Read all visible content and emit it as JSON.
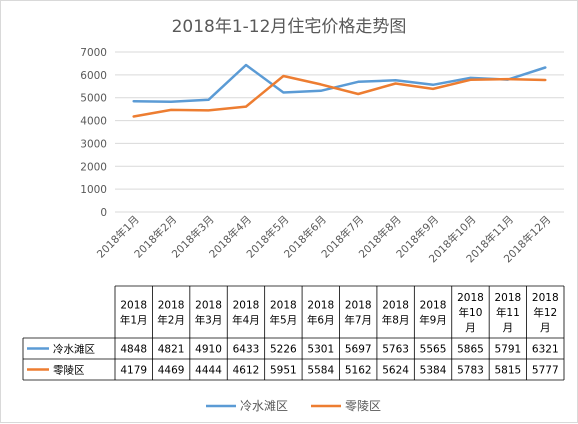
{
  "chart_data": {
    "type": "line",
    "title": "2018年1-12月住宅价格走势图",
    "categories": [
      "2018年1月",
      "2018年2月",
      "2018年3月",
      "2018年4月",
      "2018年5月",
      "2018年6月",
      "2018年7月",
      "2018年8月",
      "2018年9月",
      "2018年10月",
      "2018年11月",
      "2018年12月"
    ],
    "table_headers": [
      [
        "2018",
        "年1月"
      ],
      [
        "2018",
        "年2月"
      ],
      [
        "2018",
        "年3月"
      ],
      [
        "2018",
        "年4月"
      ],
      [
        "2018",
        "年5月"
      ],
      [
        "2018",
        "年6月"
      ],
      [
        "2018",
        "年7月"
      ],
      [
        "2018",
        "年8月"
      ],
      [
        "2018",
        "年9月"
      ],
      [
        "2018",
        "年10",
        "月"
      ],
      [
        "2018",
        "年11",
        "月"
      ],
      [
        "2018",
        "年12",
        "月"
      ]
    ],
    "series": [
      {
        "name": "冷水滩区",
        "color": "#5b9bd5",
        "values": [
          4848,
          4821,
          4910,
          6433,
          5226,
          5301,
          5697,
          5763,
          5565,
          5865,
          5791,
          6321
        ]
      },
      {
        "name": "零陵区",
        "color": "#ed7d31",
        "values": [
          4179,
          4469,
          4444,
          4612,
          5951,
          5584,
          5162,
          5624,
          5384,
          5783,
          5815,
          5777
        ]
      }
    ],
    "ylim": [
      0,
      7000
    ],
    "yticks": [
      0,
      1000,
      2000,
      3000,
      4000,
      5000,
      6000,
      7000
    ],
    "grid": true,
    "legend_position": "bottom",
    "data_table": true
  }
}
